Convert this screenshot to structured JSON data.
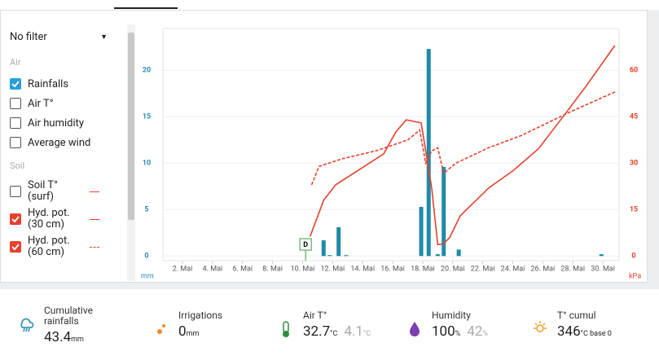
{
  "sidebar": {
    "filter": "No filter",
    "sections": [
      {
        "title": "Air",
        "items": [
          {
            "label": "Rainfalls",
            "checked": true
          },
          {
            "label": "Air T°",
            "checked": false
          },
          {
            "label": "Air humidity",
            "checked": false
          },
          {
            "label": "Average wind",
            "checked": false
          }
        ]
      },
      {
        "title": "Soil",
        "items": [
          {
            "label": "Soil T° (surf)",
            "checked": false
          },
          {
            "label": "Hyd. pot. (30 cm)",
            "checked": true
          },
          {
            "label": "Hyd. pot. (60 cm)",
            "checked": true
          }
        ]
      }
    ]
  },
  "chart_data": {
    "type": "bar",
    "xlim": [
      1,
      31
    ],
    "xticks": [
      {
        "value": 2,
        "label": "2. Mai"
      },
      {
        "value": 4,
        "label": "4. Mai"
      },
      {
        "value": 6,
        "label": "6. Mai"
      },
      {
        "value": 8,
        "label": "8. Mai"
      },
      {
        "value": 10,
        "label": "10. Mai"
      },
      {
        "value": 12,
        "label": "12. Mai"
      },
      {
        "value": 14,
        "label": "14. Mai"
      },
      {
        "value": 16,
        "label": "16. Mai"
      },
      {
        "value": 18,
        "label": "18. Mai"
      },
      {
        "value": 20,
        "label": "20. Mai"
      },
      {
        "value": 22,
        "label": "22. Mai"
      },
      {
        "value": 24,
        "label": "24. Mai"
      },
      {
        "value": 26,
        "label": "26. Mai"
      },
      {
        "value": 28,
        "label": "28. Mai"
      },
      {
        "value": 30,
        "label": "30. Mai"
      }
    ],
    "ylim": [
      -0.5,
      24.5
    ],
    "yticks": [
      0,
      5,
      10,
      15,
      20
    ],
    "y_label": "mm",
    "y2lim": [
      -1.5,
      73.5
    ],
    "y2ticks": [
      0,
      15,
      30,
      45,
      60
    ],
    "y2_label": "kPa",
    "grid": true,
    "annotation": {
      "text": "D",
      "x": 10.2
    },
    "series": [
      {
        "name": "Rainfalls",
        "type": "bar",
        "color": "#1f8aa8",
        "x": [
          11.4,
          11.8,
          12.4,
          12.9,
          17.9,
          18.4,
          19.0,
          19.4,
          20.4,
          29.9
        ],
        "values": [
          1.7,
          0.1,
          3.1,
          0.1,
          5.3,
          22.3,
          0.2,
          9.6,
          0.7,
          0.2
        ]
      },
      {
        "name": "Hyd. pot. (30 cm)",
        "type": "line",
        "axis": "y2",
        "color": "#e5412d",
        "dash": false,
        "x": [
          10.5,
          11.4,
          12.2,
          13.8,
          15.4,
          16.2,
          16.9,
          17.9,
          18.6,
          19.0,
          19.4,
          19.8,
          20.5,
          22.4,
          24.0,
          25.7,
          27.3,
          28.9,
          30.8
        ],
        "values": [
          6.3,
          18,
          23,
          28,
          33,
          40,
          44,
          43,
          22,
          3.7,
          4,
          6,
          13,
          22,
          27.5,
          34.6,
          44.7,
          55,
          68
        ]
      },
      {
        "name": "Hyd. pot. (60 cm)",
        "type": "line",
        "axis": "y2",
        "color": "#e5412d",
        "dash": true,
        "x": [
          10.6,
          11.1,
          12.7,
          14.9,
          17.0,
          17.8,
          18.2,
          18.6,
          19.0,
          19.4,
          20.2,
          22.4,
          24.6,
          27.8,
          30.8
        ],
        "values": [
          23,
          29,
          31.5,
          34,
          37.5,
          40.7,
          30,
          34,
          35,
          26.7,
          30,
          35,
          39,
          46.5,
          53
        ]
      }
    ]
  },
  "footer": [
    {
      "label": "Cumulative rainfalls",
      "value": "43.4",
      "unit": "mm"
    },
    {
      "label": "Irrigations",
      "value": "0",
      "unit": "mm"
    },
    {
      "label": "Air T°",
      "value": "32.7",
      "unit": "°C",
      "value2": "4.1",
      "unit2": "°C"
    },
    {
      "label": "Humidity",
      "value": "100",
      "unit": "%",
      "value2": "42",
      "unit2": "%"
    },
    {
      "label": "T° cumul",
      "value": "346",
      "unit": "°C base 0"
    }
  ]
}
